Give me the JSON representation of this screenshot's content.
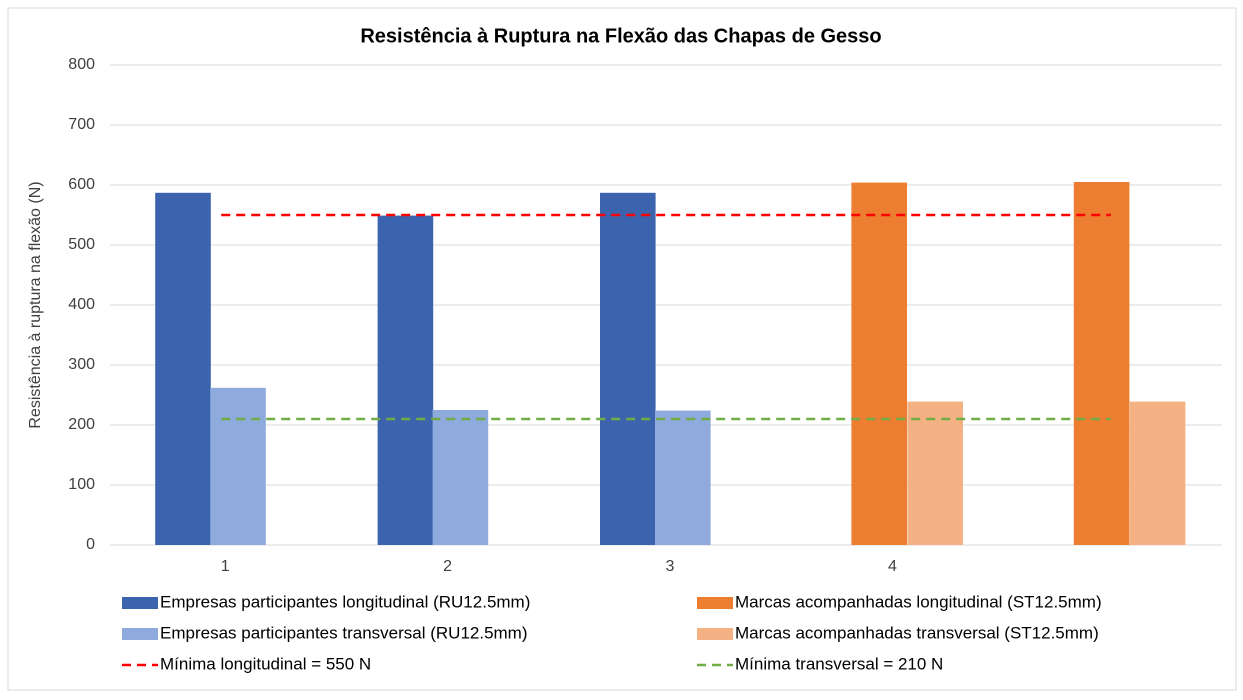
{
  "chart_data": {
    "type": "bar",
    "title": "Resistência à Ruptura na Flexão das Chapas de Gesso",
    "y_label": "Resistência à ruptura na flexão (N)",
    "categories": [
      "1",
      "2",
      "3",
      "4",
      null
    ],
    "series": [
      {
        "name": "Empresas participantes longitudinal (RU12.5mm)",
        "type": "bar",
        "color": "#3c64ae",
        "values": [
          587,
          549,
          587,
          null,
          null
        ]
      },
      {
        "name": "Empresas participantes transversal (RU12.5mm)",
        "type": "bar",
        "color": "#8faadc",
        "values": [
          262,
          225,
          224,
          null,
          null
        ]
      },
      {
        "name": "Marcas acompanhadas longitudinal (ST12.5mm)",
        "type": "bar",
        "color": "#ed7d31",
        "values": [
          null,
          null,
          null,
          604,
          605
        ]
      },
      {
        "name": "Marcas acompanhadas transversal (ST12.5mm)",
        "type": "bar",
        "color": "#f4b183",
        "values": [
          null,
          null,
          null,
          239,
          239
        ]
      },
      {
        "name": "Mínima longitudinal = 550 N",
        "type": "line",
        "color": "#ff0000",
        "values": [
          550,
          550,
          550,
          550,
          550
        ]
      },
      {
        "name": "Mínima transversal = 210 N",
        "type": "line",
        "color": "#70ad47",
        "values": [
          210,
          210,
          210,
          210,
          210
        ]
      }
    ],
    "ylim": [
      0,
      800
    ],
    "yticks": [
      0,
      100,
      200,
      300,
      400,
      500,
      600,
      700,
      800
    ],
    "grid": true
  }
}
